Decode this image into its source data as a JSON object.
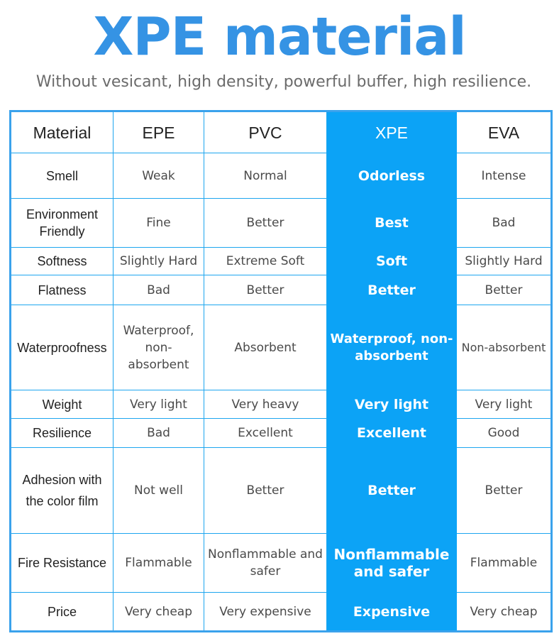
{
  "title": "XPE material",
  "subtitle": "Without vesicant, high density, powerful buffer, high resilience.",
  "colors": {
    "title": "#3593e4",
    "highlight_column": "#0ca3f6",
    "border": "#1ea6ef"
  },
  "table": {
    "headers": [
      "Material",
      "EPE",
      "PVC",
      "XPE",
      "EVA"
    ],
    "highlight_column_index": 3,
    "rows": [
      {
        "label": "Smell",
        "cells": [
          "Weak",
          "Normal",
          "Odorless",
          "Intense"
        ]
      },
      {
        "label": "Environment Friendly",
        "cells": [
          "Fine",
          "Better",
          "Best",
          "Bad"
        ]
      },
      {
        "label": "Softness",
        "cells": [
          "Slightly Hard",
          "Extreme Soft",
          "Soft",
          "Slightly Hard"
        ]
      },
      {
        "label": "Flatness",
        "cells": [
          "Bad",
          "Better",
          "Better",
          "Better"
        ]
      },
      {
        "label": "Waterproofness",
        "cells": [
          "Waterproof, non-absorbent",
          "Absorbent",
          "Waterproof, non-absorbent",
          "Non-absorbent"
        ]
      },
      {
        "label": "Weight",
        "cells": [
          "Very light",
          "Very heavy",
          "Very light",
          "Very light"
        ]
      },
      {
        "label": "Resilience",
        "cells": [
          "Bad",
          "Excellent",
          "Excellent",
          "Good"
        ]
      },
      {
        "label": "Adhesion with the color film",
        "cells": [
          "Not well",
          "Better",
          "Better",
          "Better"
        ]
      },
      {
        "label": "Fire Resistance",
        "cells": [
          "Flammable",
          "Nonflammable and safer",
          "Nonflammable and safer",
          "Flammable"
        ]
      },
      {
        "label": "Price",
        "cells": [
          "Very cheap",
          "Very expensive",
          "Expensive",
          "Very cheap"
        ]
      }
    ]
  }
}
